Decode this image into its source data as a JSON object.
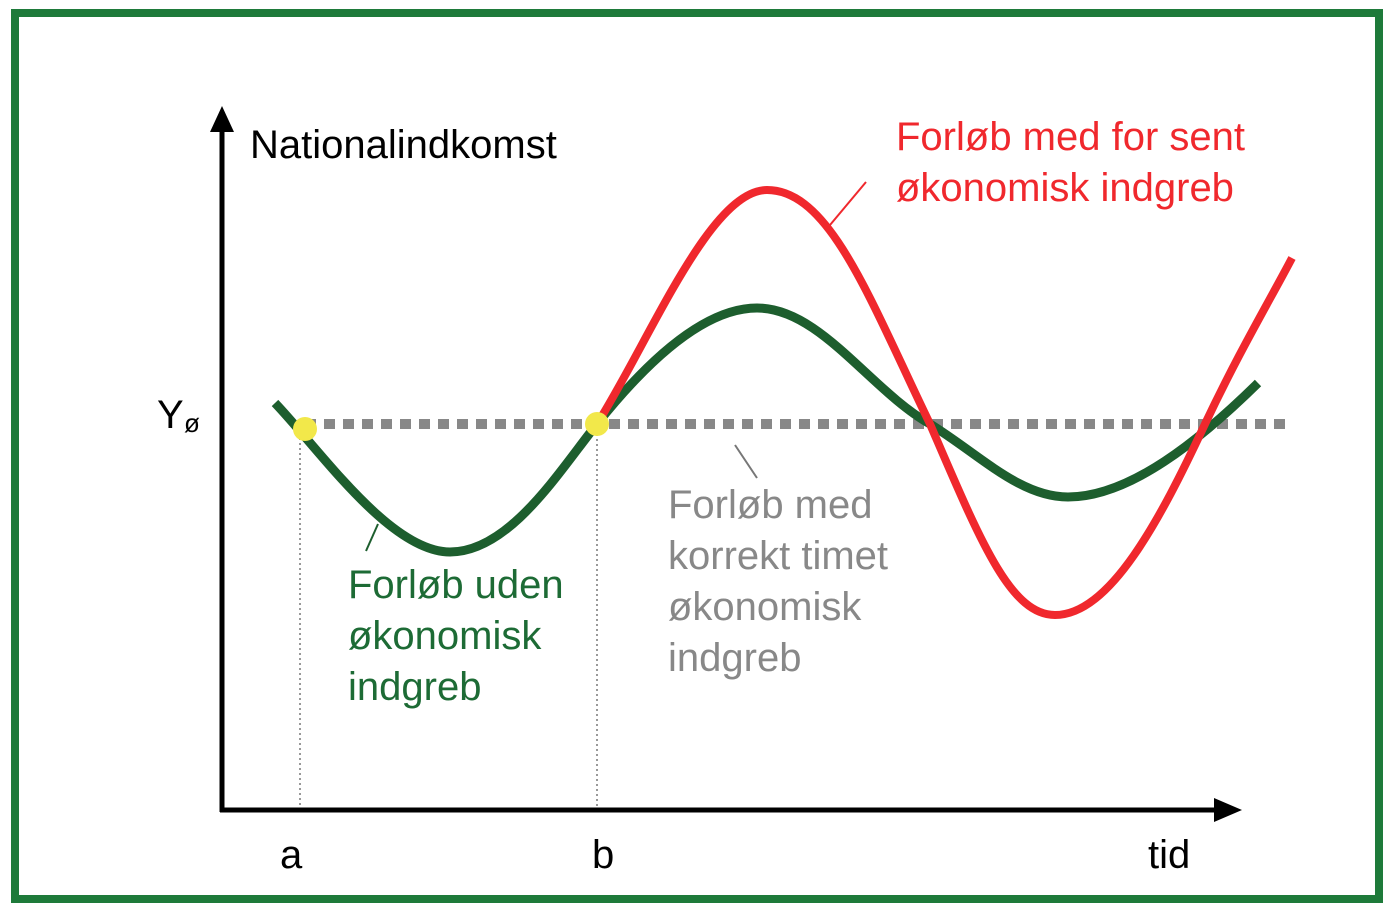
{
  "y_axis_label": "Nationalindkomst",
  "y_level": {
    "symbol": "Y",
    "subscript": "ø"
  },
  "x_axis_label": "tid",
  "x_markers": [
    "a",
    "b"
  ],
  "annotations": {
    "late": [
      "Forløb med for sent",
      "økonomisk indgreb"
    ],
    "none": [
      "Forløb uden",
      "økonomisk",
      "indgreb"
    ],
    "timed": [
      "Forløb med",
      "korrekt timet",
      "økonomisk",
      "indgreb"
    ]
  }
}
